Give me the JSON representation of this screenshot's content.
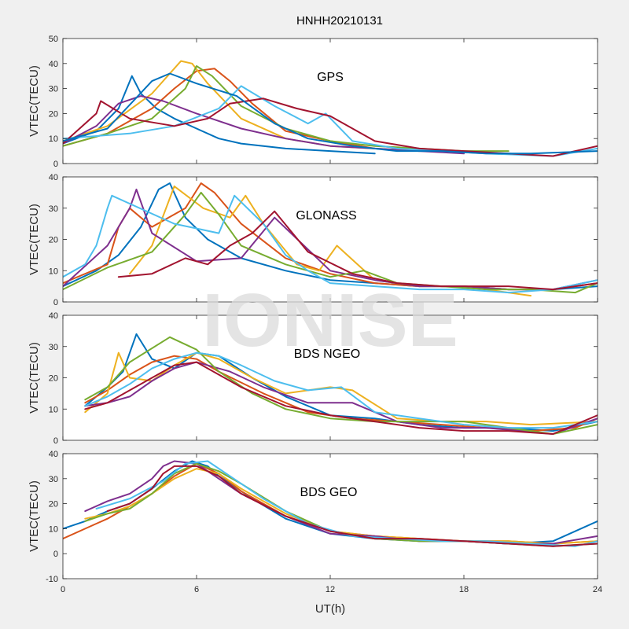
{
  "title": "HNHH20210131",
  "watermark": "IONISE",
  "xlabel": "UT(h)",
  "x_ticks": [
    "0",
    "6",
    "12",
    "18",
    "24"
  ],
  "colors": [
    "#0072BD",
    "#D95319",
    "#EDB120",
    "#7E2F8E",
    "#77AC30",
    "#4DBEEE",
    "#A2142F"
  ],
  "chart_data": [
    {
      "type": "line",
      "label": "GPS",
      "ylabel": "VTEC(TECU)",
      "xlim": [
        0,
        24
      ],
      "ylim": [
        0,
        50
      ],
      "yticks": [
        0,
        10,
        20,
        30,
        40,
        50
      ],
      "series": [
        {
          "x": [
            0,
            1.5,
            2.5,
            3.1,
            3.5,
            4.2,
            5,
            6,
            7,
            8,
            10,
            12,
            14
          ],
          "y": [
            8,
            13,
            22,
            35,
            28,
            22,
            18,
            14,
            10,
            8,
            6,
            5,
            4
          ]
        },
        {
          "x": [
            0,
            2,
            4,
            5,
            6,
            6.8,
            7.5,
            8.5,
            10,
            12,
            14,
            16
          ],
          "y": [
            7,
            12,
            22,
            30,
            37,
            38,
            33,
            24,
            13,
            9,
            6,
            5
          ]
        },
        {
          "x": [
            0,
            2,
            4,
            5.3,
            5.8,
            6.5,
            8,
            10,
            12,
            14
          ],
          "y": [
            9,
            15,
            28,
            41,
            40,
            32,
            18,
            10,
            7,
            6
          ]
        },
        {
          "x": [
            0,
            1.5,
            2.5,
            3.5,
            4.5,
            6,
            8,
            10,
            12,
            14,
            16,
            18
          ],
          "y": [
            8,
            15,
            24,
            27,
            25,
            20,
            14,
            10,
            7,
            6,
            5,
            4
          ]
        },
        {
          "x": [
            0,
            2,
            4,
            5.5,
            6,
            6.7,
            8,
            10,
            12,
            14,
            16,
            18,
            20
          ],
          "y": [
            7,
            12,
            18,
            30,
            39,
            35,
            23,
            14,
            9,
            7,
            6,
            5,
            5
          ]
        },
        {
          "x": [
            0,
            3,
            5,
            7,
            8,
            9.5,
            11,
            11.8,
            13,
            15,
            17,
            19,
            22,
            24
          ],
          "y": [
            10,
            12,
            15,
            22,
            31,
            23,
            16,
            20,
            9,
            6,
            5,
            4,
            3,
            6
          ]
        },
        {
          "x": [
            0,
            1.5,
            1.7,
            3,
            5,
            6.5,
            7.5,
            9,
            10.5,
            12,
            14,
            16,
            18,
            20,
            22,
            24
          ],
          "y": [
            8,
            20,
            25,
            18,
            15,
            18,
            24,
            26,
            22,
            19,
            9,
            6,
            5,
            4,
            3,
            7
          ]
        },
        {
          "x": [
            0,
            2,
            4,
            4.8,
            6,
            7.8,
            9.5,
            11,
            13,
            15,
            17,
            19,
            21,
            24
          ],
          "y": [
            9,
            14,
            33,
            36,
            32,
            27,
            16,
            10,
            7,
            5,
            5,
            4,
            4,
            5
          ]
        }
      ]
    },
    {
      "type": "line",
      "label": "GLONASS",
      "ylabel": "VTEC(TECU)",
      "xlim": [
        0,
        24
      ],
      "ylim": [
        0,
        40
      ],
      "yticks": [
        0,
        10,
        20,
        30,
        40
      ],
      "series": [
        {
          "x": [
            0,
            1.5,
            2.5,
            3.5,
            4.3,
            4.8,
            5.5,
            6.5,
            8,
            10,
            12,
            14,
            16,
            18,
            20,
            22,
            24
          ],
          "y": [
            5,
            10,
            15,
            24,
            36,
            38,
            27,
            20,
            14,
            10,
            7,
            6,
            5,
            5,
            4,
            4,
            5
          ]
        },
        {
          "x": [
            0,
            2,
            2.5,
            3,
            4,
            5.5,
            6.2,
            6.8,
            8,
            10,
            12,
            14,
            16,
            18,
            20,
            22,
            24
          ],
          "y": [
            6,
            12,
            24,
            30,
            24,
            30,
            38,
            35,
            25,
            14,
            9,
            6,
            5,
            5,
            4,
            4,
            6
          ]
        },
        {
          "x": [
            3,
            4,
            5,
            6.3,
            7.5,
            8.2,
            9,
            10.5,
            11.5,
            12.3,
            14,
            16,
            18,
            21
          ],
          "y": [
            9,
            18,
            37,
            30,
            27,
            34,
            25,
            12,
            10,
            18,
            7,
            5,
            5,
            2
          ]
        },
        {
          "x": [
            0,
            2,
            3,
            3.3,
            4,
            6,
            8,
            9.5,
            12,
            14,
            16,
            18,
            20,
            22,
            24
          ],
          "y": [
            5,
            18,
            30,
            36,
            22,
            13,
            14,
            27,
            10,
            7,
            5,
            5,
            4,
            4,
            7
          ]
        },
        {
          "x": [
            0,
            2,
            4,
            5.5,
            6.2,
            7,
            8,
            10,
            12,
            13.5,
            15,
            17,
            19,
            21,
            23,
            24
          ],
          "y": [
            4,
            11,
            16,
            28,
            35,
            28,
            18,
            12,
            8,
            10,
            6,
            5,
            4,
            4,
            3,
            6
          ]
        },
        {
          "x": [
            0,
            1,
            1.5,
            2,
            2.2,
            5,
            7,
            7.7,
            9,
            10,
            11,
            12,
            14,
            16,
            18,
            20,
            22,
            24
          ],
          "y": [
            8,
            12,
            18,
            30,
            34,
            25,
            22,
            34,
            25,
            15,
            10,
            6,
            5,
            4,
            4,
            3,
            4,
            7
          ]
        },
        {
          "x": [
            2.5,
            4,
            5.5,
            6.5,
            7.5,
            8.5,
            9.5,
            11,
            13,
            15,
            17,
            20,
            22,
            24
          ],
          "y": [
            8,
            9,
            14,
            12,
            18,
            22,
            29,
            16,
            9,
            6,
            5,
            5,
            4,
            6
          ]
        }
      ]
    },
    {
      "type": "line",
      "label": "BDS NGEO",
      "ylabel": "VTEC(TECU)",
      "xlim": [
        0,
        24
      ],
      "ylim": [
        0,
        40
      ],
      "yticks": [
        0,
        10,
        20,
        30,
        40
      ],
      "series": [
        {
          "x": [
            1,
            2,
            2.7,
            3.3,
            4,
            5,
            6,
            7,
            8.5,
            10,
            12,
            14,
            16,
            18,
            20,
            22,
            24
          ],
          "y": [
            11,
            17,
            22,
            34,
            26,
            23,
            28,
            27,
            20,
            14,
            8,
            7,
            5,
            4,
            4,
            3,
            6
          ]
        },
        {
          "x": [
            1,
            2,
            3,
            4,
            5,
            6,
            7,
            9,
            11,
            13,
            15,
            17,
            19,
            21,
            23,
            24
          ],
          "y": [
            12,
            16,
            21,
            25,
            27,
            26,
            22,
            15,
            9,
            7,
            6,
            5,
            4,
            3,
            4,
            7
          ]
        },
        {
          "x": [
            1,
            2,
            2.5,
            3,
            4,
            5,
            6,
            7,
            8.5,
            10,
            12,
            13,
            15,
            17,
            19,
            21,
            24
          ],
          "y": [
            9,
            15,
            28,
            20,
            19,
            24,
            28,
            26,
            20,
            15,
            17,
            16,
            7,
            6,
            6,
            5,
            6
          ]
        },
        {
          "x": [
            1,
            2,
            3,
            4,
            5,
            6,
            7.5,
            9,
            11,
            13,
            15,
            17,
            19,
            22,
            24
          ],
          "y": [
            11,
            12,
            14,
            19,
            23,
            25,
            22,
            17,
            12,
            12,
            6,
            4,
            4,
            2,
            7
          ]
        },
        {
          "x": [
            1,
            2,
            3,
            4.8,
            6,
            7,
            8.5,
            10,
            12,
            14,
            16,
            18,
            20,
            22,
            24
          ],
          "y": [
            13,
            17,
            25,
            33,
            29,
            22,
            15,
            10,
            7,
            6,
            6,
            6,
            4,
            2,
            5
          ]
        },
        {
          "x": [
            1,
            2,
            3,
            4,
            5,
            6,
            7,
            8,
            9.5,
            11,
            12.5,
            14,
            16,
            18,
            20,
            22,
            24
          ],
          "y": [
            11,
            14,
            18,
            23,
            26,
            28,
            27,
            24,
            19,
            16,
            17,
            9,
            7,
            5,
            4,
            4,
            6
          ]
        },
        {
          "x": [
            1,
            2,
            3,
            4,
            5,
            6,
            7,
            8,
            10,
            12,
            14,
            16,
            18,
            20,
            22,
            24
          ],
          "y": [
            10,
            12,
            16,
            20,
            24,
            25,
            21,
            17,
            11,
            8,
            6,
            4,
            3,
            3,
            2,
            8
          ]
        }
      ]
    },
    {
      "type": "line",
      "label": "BDS GEO",
      "ylabel": "VTEC(TECU)",
      "xlim": [
        0,
        24
      ],
      "ylim": [
        -10,
        40
      ],
      "yticks": [
        -10,
        0,
        10,
        20,
        30,
        40
      ],
      "series": [
        {
          "x": [
            0,
            1,
            2,
            3,
            4,
            5,
            5.8,
            6.5,
            7,
            8.5,
            10,
            12,
            14,
            16,
            18,
            20,
            22,
            24
          ],
          "y": [
            10,
            13,
            17,
            20,
            26,
            33,
            37,
            35,
            31,
            22,
            14,
            8,
            6,
            5,
            5,
            4,
            5,
            13
          ]
        },
        {
          "x": [
            0,
            1,
            2,
            3,
            4,
            5,
            6,
            7,
            8,
            10,
            12,
            14,
            16,
            18,
            20,
            22,
            24
          ],
          "y": [
            6,
            10,
            14,
            19,
            24,
            31,
            36,
            32,
            25,
            15,
            9,
            7,
            6,
            5,
            5,
            4,
            5
          ]
        },
        {
          "x": [
            1,
            2,
            3,
            4,
            5,
            6,
            7,
            8,
            10,
            12,
            14,
            16,
            18,
            20,
            22,
            24
          ],
          "y": [
            14,
            16,
            19,
            24,
            30,
            34,
            32,
            26,
            16,
            9,
            7,
            6,
            5,
            5,
            4,
            5
          ]
        },
        {
          "x": [
            1,
            2,
            3,
            4,
            4.5,
            5,
            6,
            7,
            8,
            10,
            12,
            14,
            16,
            18,
            20,
            22,
            24
          ],
          "y": [
            17,
            21,
            24,
            30,
            35,
            37,
            36,
            30,
            24,
            15,
            8,
            7,
            5,
            5,
            4,
            4,
            7
          ]
        },
        {
          "x": [
            1,
            2,
            3,
            4,
            5,
            6,
            7,
            8,
            10,
            12,
            14,
            16,
            18,
            20,
            22,
            24
          ],
          "y": [
            13,
            16,
            18,
            24,
            32,
            36,
            33,
            28,
            17,
            9,
            6,
            5,
            5,
            4,
            3,
            4
          ]
        },
        {
          "x": [
            1.5,
            3,
            4.5,
            5.5,
            6.5,
            7.5,
            9,
            11,
            13,
            15,
            17,
            19,
            21,
            23,
            24
          ],
          "y": [
            18,
            22,
            29,
            36,
            37,
            31,
            22,
            12,
            7,
            6,
            5,
            5,
            4,
            3,
            5
          ]
        },
        {
          "x": [
            2,
            3,
            4,
            4.5,
            5,
            6,
            7,
            8,
            10,
            12,
            14,
            16,
            18,
            20,
            22,
            24
          ],
          "y": [
            17,
            20,
            26,
            32,
            35,
            35,
            31,
            24,
            15,
            9,
            6,
            6,
            5,
            4,
            3,
            4
          ]
        }
      ]
    }
  ]
}
